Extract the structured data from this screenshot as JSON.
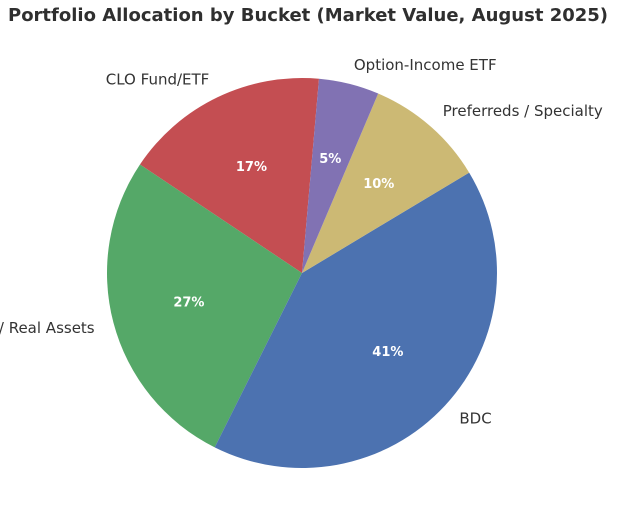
{
  "chart_data": {
    "type": "pie",
    "title": "Portfolio Allocation by Bucket (Market Value, August 2025)",
    "slices": [
      {
        "label": "CLO Fund/ETF",
        "value": 17,
        "pct_label": "17%",
        "color": "#c44e52"
      },
      {
        "label": "CEF / Real Assets",
        "value": 27,
        "pct_label": "27%",
        "color": "#55a868"
      },
      {
        "label": "BDC",
        "value": 41,
        "pct_label": "41%",
        "color": "#4c72b0"
      },
      {
        "label": "Preferreds / Specialty",
        "value": 10,
        "pct_label": "10%",
        "color": "#ccb974"
      },
      {
        "label": "Option-Income ETF",
        "value": 5,
        "pct_label": "5%",
        "color": "#8172b3"
      }
    ]
  }
}
